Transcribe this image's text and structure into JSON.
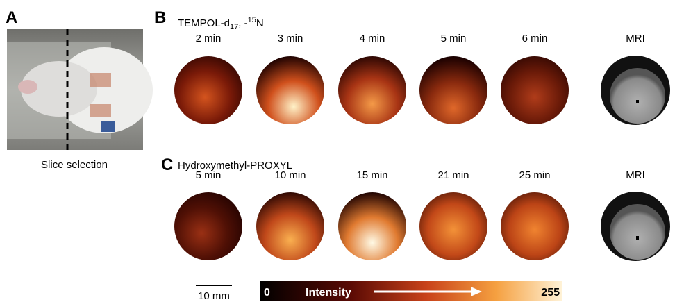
{
  "panel_a": {
    "label": "A",
    "caption": "Slice selection"
  },
  "panel_b": {
    "label": "B",
    "title": {
      "text": "TEMPOL-d",
      "sub": "17",
      "mid": ", -",
      "sup": "15",
      "end": "N"
    },
    "times": [
      "2 min",
      "3 min",
      "4 min",
      "5 min",
      "6 min"
    ],
    "mri": "MRI"
  },
  "panel_c": {
    "label": "C",
    "title": "Hydroxymethyl-PROXYL",
    "times": [
      "5 min",
      "10 min",
      "15 min",
      "21 min",
      "25 min"
    ],
    "mri": "MRI"
  },
  "scale_bar": "10 mm",
  "colorbar": {
    "min": 0,
    "label": "Intensity",
    "max": 255
  }
}
